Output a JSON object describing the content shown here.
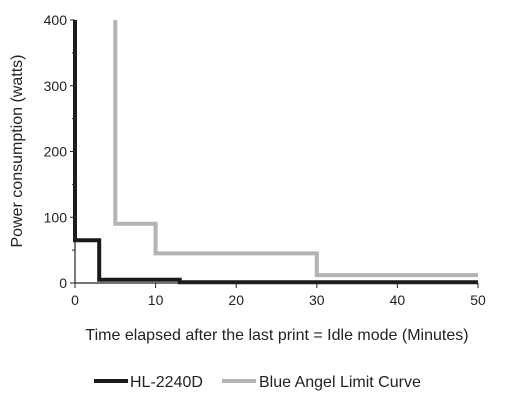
{
  "chart_data": {
    "type": "line",
    "title": "",
    "xlabel": "Time elapsed after the last print = Idle mode (Minutes)",
    "ylabel": "Power consumption (watts)",
    "xlim": [
      0,
      50
    ],
    "ylim": [
      0,
      400
    ],
    "x_ticks": [
      0,
      10,
      20,
      30,
      40,
      50
    ],
    "y_ticks": [
      0,
      100,
      200,
      300,
      400
    ],
    "grid": false,
    "legend_position": "bottom-center",
    "step": true,
    "series": [
      {
        "name": "HL-2240D",
        "color": "#1a1a1a",
        "x": [
          0,
          0,
          3,
          3,
          13,
          13,
          50
        ],
        "y": [
          400,
          65,
          65,
          5,
          5,
          1,
          1
        ]
      },
      {
        "name": "Blue Angel Limit Curve",
        "color": "#b3b3b3",
        "x": [
          5,
          5,
          10,
          10,
          30,
          30,
          50
        ],
        "y": [
          400,
          90,
          90,
          45,
          45,
          12,
          12
        ]
      }
    ]
  }
}
